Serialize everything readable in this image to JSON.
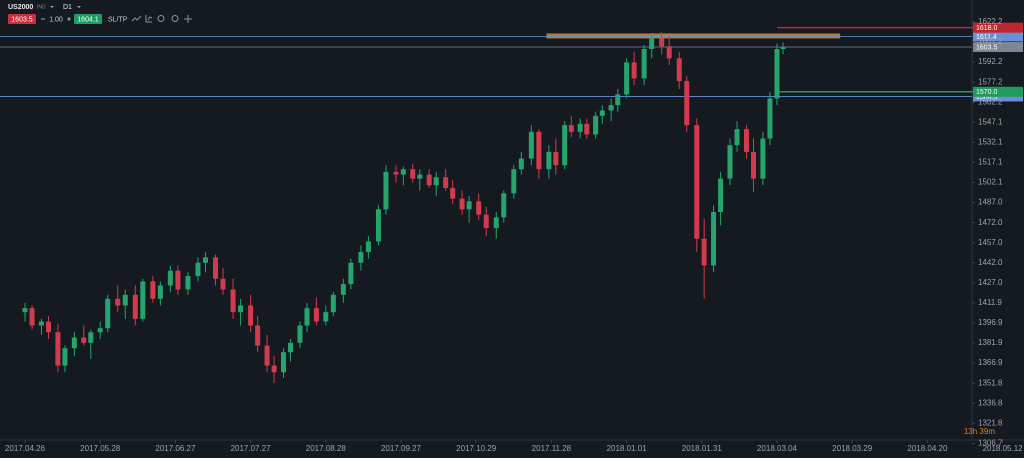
{
  "toolbar": {
    "symbol": "US2000",
    "market": "IND",
    "timeframe": "D1",
    "bid": "1603.5",
    "lot": "1.00",
    "ask": "1604.1",
    "sltp": "SL/TP",
    "countdown": "13h 39m"
  },
  "chart_data": {
    "type": "candlestick",
    "up_color": "#26a46e",
    "down_color": "#d23b4e",
    "ylim": [
      1309.3,
      1638.7
    ],
    "yticks": [
      1622.2,
      1607.2,
      1592.2,
      1577.2,
      1562.2,
      1547.1,
      1532.1,
      1517.1,
      1502.1,
      {
        "value": 1487.0,
        "label": "1487.0"
      },
      {
        "value": 1472.0,
        "label": "1472.0"
      },
      {
        "value": 1457.0,
        "label": "1457.0"
      },
      {
        "value": 1442.0,
        "label": "1442.0"
      },
      {
        "value": 1427.0,
        "label": "1427.0"
      },
      1411.9,
      1396.9,
      1381.9,
      1366.9,
      1351.8,
      1336.8,
      1321.8,
      1306.7
    ],
    "xticks": [
      "2017.04.26",
      "2017.05.28",
      "2017.06.27",
      "2017.07.27",
      "2017.08.28",
      "2017.09.27",
      "2017.10.29",
      "2017.11.28",
      "2018.01.01",
      "2018.01.31",
      "2018.03.04",
      "2018.03.29",
      "2018.04.20",
      "2018.05.12"
    ],
    "price_lines": [
      {
        "price": 1611.4,
        "label": "1611.4",
        "color": "#6a8fd8",
        "start": null
      },
      {
        "price": 1603.5,
        "label": "1603.5",
        "color": "#7d8794",
        "start": null
      },
      {
        "price": 1566.5,
        "label": "1566.5",
        "color": "#6a8fd8",
        "start": null
      },
      {
        "price": 1618.0,
        "label": "1618.0",
        "color": "#c0262f",
        "start": "2018.03.04"
      },
      {
        "price": 1570.0,
        "label": "1570.0",
        "color": "#1f9c5c",
        "start": "2018.03.04"
      }
    ],
    "zones": [
      {
        "price": 1611.8,
        "start": "2017.11.26",
        "end": "2018.03.25",
        "color": "#b07d3c"
      }
    ],
    "candles": [
      {
        "date": "2017.04.26",
        "open": 1405,
        "high": 1412,
        "low": 1398,
        "close": 1408
      },
      {
        "date": "2017.04.29",
        "open": 1408,
        "high": 1410,
        "low": 1392,
        "close": 1395
      },
      {
        "date": "2017.05.03",
        "open": 1395,
        "high": 1400,
        "low": 1388,
        "close": 1398
      },
      {
        "date": "2017.05.06",
        "open": 1398,
        "high": 1402,
        "low": 1385,
        "close": 1390
      },
      {
        "date": "2017.05.10",
        "open": 1390,
        "high": 1396,
        "low": 1360,
        "close": 1365
      },
      {
        "date": "2017.05.13",
        "open": 1365,
        "high": 1380,
        "low": 1360,
        "close": 1378
      },
      {
        "date": "2017.05.17",
        "open": 1378,
        "high": 1390,
        "low": 1372,
        "close": 1386
      },
      {
        "date": "2017.05.21",
        "open": 1386,
        "high": 1395,
        "low": 1380,
        "close": 1382
      },
      {
        "date": "2017.05.24",
        "open": 1382,
        "high": 1392,
        "low": 1370,
        "close": 1390
      },
      {
        "date": "2017.05.28",
        "open": 1390,
        "high": 1398,
        "low": 1385,
        "close": 1393
      },
      {
        "date": "2017.05.31",
        "open": 1393,
        "high": 1418,
        "low": 1390,
        "close": 1415
      },
      {
        "date": "2017.06.04",
        "open": 1415,
        "high": 1425,
        "low": 1405,
        "close": 1410
      },
      {
        "date": "2017.06.07",
        "open": 1410,
        "high": 1422,
        "low": 1400,
        "close": 1418
      },
      {
        "date": "2017.06.11",
        "open": 1418,
        "high": 1425,
        "low": 1395,
        "close": 1400
      },
      {
        "date": "2017.06.14",
        "open": 1400,
        "high": 1430,
        "low": 1398,
        "close": 1428
      },
      {
        "date": "2017.06.18",
        "open": 1428,
        "high": 1432,
        "low": 1412,
        "close": 1415
      },
      {
        "date": "2017.06.21",
        "open": 1415,
        "high": 1428,
        "low": 1410,
        "close": 1425
      },
      {
        "date": "2017.06.25",
        "open": 1425,
        "high": 1440,
        "low": 1420,
        "close": 1436
      },
      {
        "date": "2017.06.28",
        "open": 1436,
        "high": 1440,
        "low": 1418,
        "close": 1422
      },
      {
        "date": "2017.07.02",
        "open": 1422,
        "high": 1435,
        "low": 1418,
        "close": 1432
      },
      {
        "date": "2017.07.06",
        "open": 1432,
        "high": 1446,
        "low": 1428,
        "close": 1442
      },
      {
        "date": "2017.07.09",
        "open": 1442,
        "high": 1450,
        "low": 1435,
        "close": 1446
      },
      {
        "date": "2017.07.13",
        "open": 1446,
        "high": 1448,
        "low": 1425,
        "close": 1430
      },
      {
        "date": "2017.07.16",
        "open": 1430,
        "high": 1438,
        "low": 1418,
        "close": 1422
      },
      {
        "date": "2017.07.20",
        "open": 1422,
        "high": 1430,
        "low": 1400,
        "close": 1405
      },
      {
        "date": "2017.07.23",
        "open": 1405,
        "high": 1415,
        "low": 1395,
        "close": 1410
      },
      {
        "date": "2017.07.27",
        "open": 1410,
        "high": 1418,
        "low": 1390,
        "close": 1395
      },
      {
        "date": "2017.07.30",
        "open": 1395,
        "high": 1402,
        "low": 1375,
        "close": 1380
      },
      {
        "date": "2017.08.03",
        "open": 1380,
        "high": 1388,
        "low": 1360,
        "close": 1365
      },
      {
        "date": "2017.08.06",
        "open": 1365,
        "high": 1372,
        "low": 1352,
        "close": 1360
      },
      {
        "date": "2017.08.10",
        "open": 1360,
        "high": 1378,
        "low": 1356,
        "close": 1375
      },
      {
        "date": "2017.08.13",
        "open": 1375,
        "high": 1385,
        "low": 1368,
        "close": 1382
      },
      {
        "date": "2017.08.17",
        "open": 1382,
        "high": 1398,
        "low": 1378,
        "close": 1395
      },
      {
        "date": "2017.08.20",
        "open": 1395,
        "high": 1412,
        "low": 1390,
        "close": 1408
      },
      {
        "date": "2017.08.24",
        "open": 1408,
        "high": 1416,
        "low": 1395,
        "close": 1398
      },
      {
        "date": "2017.08.28",
        "open": 1398,
        "high": 1410,
        "low": 1395,
        "close": 1405
      },
      {
        "date": "2017.08.31",
        "open": 1405,
        "high": 1420,
        "low": 1402,
        "close": 1418
      },
      {
        "date": "2017.09.04",
        "open": 1418,
        "high": 1430,
        "low": 1412,
        "close": 1426
      },
      {
        "date": "2017.09.07",
        "open": 1426,
        "high": 1445,
        "low": 1422,
        "close": 1442
      },
      {
        "date": "2017.09.11",
        "open": 1442,
        "high": 1455,
        "low": 1436,
        "close": 1450
      },
      {
        "date": "2017.09.14",
        "open": 1450,
        "high": 1462,
        "low": 1445,
        "close": 1458
      },
      {
        "date": "2017.09.18",
        "open": 1458,
        "high": 1485,
        "low": 1455,
        "close": 1482
      },
      {
        "date": "2017.09.21",
        "open": 1482,
        "high": 1515,
        "low": 1478,
        "close": 1510
      },
      {
        "date": "2017.09.25",
        "open": 1510,
        "high": 1515,
        "low": 1502,
        "close": 1508
      },
      {
        "date": "2017.09.28",
        "open": 1508,
        "high": 1514,
        "low": 1500,
        "close": 1512
      },
      {
        "date": "2017.10.02",
        "open": 1512,
        "high": 1516,
        "low": 1502,
        "close": 1505
      },
      {
        "date": "2017.10.05",
        "open": 1505,
        "high": 1512,
        "low": 1496,
        "close": 1508
      },
      {
        "date": "2017.10.09",
        "open": 1508,
        "high": 1512,
        "low": 1498,
        "close": 1500
      },
      {
        "date": "2017.10.12",
        "open": 1500,
        "high": 1510,
        "low": 1492,
        "close": 1506
      },
      {
        "date": "2017.10.16",
        "open": 1506,
        "high": 1512,
        "low": 1496,
        "close": 1498
      },
      {
        "date": "2017.10.19",
        "open": 1498,
        "high": 1504,
        "low": 1486,
        "close": 1490
      },
      {
        "date": "2017.10.23",
        "open": 1490,
        "high": 1496,
        "low": 1478,
        "close": 1482
      },
      {
        "date": "2017.10.26",
        "open": 1482,
        "high": 1492,
        "low": 1472,
        "close": 1488
      },
      {
        "date": "2017.10.30",
        "open": 1488,
        "high": 1494,
        "low": 1474,
        "close": 1478
      },
      {
        "date": "2017.11.02",
        "open": 1478,
        "high": 1484,
        "low": 1462,
        "close": 1468
      },
      {
        "date": "2017.11.06",
        "open": 1468,
        "high": 1480,
        "low": 1460,
        "close": 1476
      },
      {
        "date": "2017.11.09",
        "open": 1476,
        "high": 1496,
        "low": 1472,
        "close": 1494
      },
      {
        "date": "2017.11.13",
        "open": 1494,
        "high": 1515,
        "low": 1490,
        "close": 1512
      },
      {
        "date": "2017.11.16",
        "open": 1512,
        "high": 1525,
        "low": 1508,
        "close": 1520
      },
      {
        "date": "2017.11.20",
        "open": 1520,
        "high": 1545,
        "low": 1515,
        "close": 1540
      },
      {
        "date": "2017.11.23",
        "open": 1540,
        "high": 1542,
        "low": 1505,
        "close": 1512
      },
      {
        "date": "2017.11.27",
        "open": 1512,
        "high": 1530,
        "low": 1505,
        "close": 1525
      },
      {
        "date": "2017.11.30",
        "open": 1525,
        "high": 1535,
        "low": 1508,
        "close": 1515
      },
      {
        "date": "2017.12.04",
        "open": 1515,
        "high": 1548,
        "low": 1512,
        "close": 1545
      },
      {
        "date": "2017.12.07",
        "open": 1545,
        "high": 1552,
        "low": 1536,
        "close": 1540
      },
      {
        "date": "2017.12.11",
        "open": 1540,
        "high": 1550,
        "low": 1535,
        "close": 1546
      },
      {
        "date": "2017.12.14",
        "open": 1546,
        "high": 1550,
        "low": 1535,
        "close": 1538
      },
      {
        "date": "2017.12.18",
        "open": 1538,
        "high": 1555,
        "low": 1535,
        "close": 1552
      },
      {
        "date": "2017.12.21",
        "open": 1552,
        "high": 1560,
        "low": 1546,
        "close": 1556
      },
      {
        "date": "2017.12.25",
        "open": 1556,
        "high": 1565,
        "low": 1548,
        "close": 1560
      },
      {
        "date": "2017.12.28",
        "open": 1560,
        "high": 1572,
        "low": 1555,
        "close": 1568
      },
      {
        "date": "2018.01.01",
        "open": 1568,
        "high": 1595,
        "low": 1565,
        "close": 1592
      },
      {
        "date": "2018.01.04",
        "open": 1592,
        "high": 1600,
        "low": 1575,
        "close": 1580
      },
      {
        "date": "2018.01.08",
        "open": 1580,
        "high": 1605,
        "low": 1575,
        "close": 1602
      },
      {
        "date": "2018.01.11",
        "open": 1602,
        "high": 1614,
        "low": 1595,
        "close": 1610
      },
      {
        "date": "2018.01.15",
        "open": 1610,
        "high": 1615,
        "low": 1598,
        "close": 1604
      },
      {
        "date": "2018.01.18",
        "open": 1604,
        "high": 1612,
        "low": 1590,
        "close": 1595
      },
      {
        "date": "2018.01.22",
        "open": 1595,
        "high": 1600,
        "low": 1572,
        "close": 1578
      },
      {
        "date": "2018.01.25",
        "open": 1578,
        "high": 1582,
        "low": 1540,
        "close": 1545
      },
      {
        "date": "2018.01.29",
        "open": 1545,
        "high": 1550,
        "low": 1450,
        "close": 1460
      },
      {
        "date": "2018.02.01",
        "open": 1460,
        "high": 1475,
        "low": 1415,
        "close": 1440
      },
      {
        "date": "2018.02.05",
        "open": 1440,
        "high": 1485,
        "low": 1435,
        "close": 1480
      },
      {
        "date": "2018.02.08",
        "open": 1480,
        "high": 1510,
        "low": 1470,
        "close": 1505
      },
      {
        "date": "2018.02.12",
        "open": 1505,
        "high": 1535,
        "low": 1500,
        "close": 1530
      },
      {
        "date": "2018.02.15",
        "open": 1530,
        "high": 1548,
        "low": 1525,
        "close": 1542
      },
      {
        "date": "2018.02.19",
        "open": 1542,
        "high": 1545,
        "low": 1520,
        "close": 1525
      },
      {
        "date": "2018.02.22",
        "open": 1525,
        "high": 1535,
        "low": 1495,
        "close": 1505
      },
      {
        "date": "2018.02.26",
        "open": 1505,
        "high": 1540,
        "low": 1500,
        "close": 1535
      },
      {
        "date": "2018.03.01",
        "open": 1535,
        "high": 1570,
        "low": 1530,
        "close": 1565
      },
      {
        "date": "2018.03.04",
        "open": 1565,
        "high": 1606,
        "low": 1560,
        "close": 1602
      },
      {
        "date": "2018.03.06",
        "open": 1602,
        "high": 1607,
        "low": 1598,
        "close": 1603.5
      }
    ]
  }
}
